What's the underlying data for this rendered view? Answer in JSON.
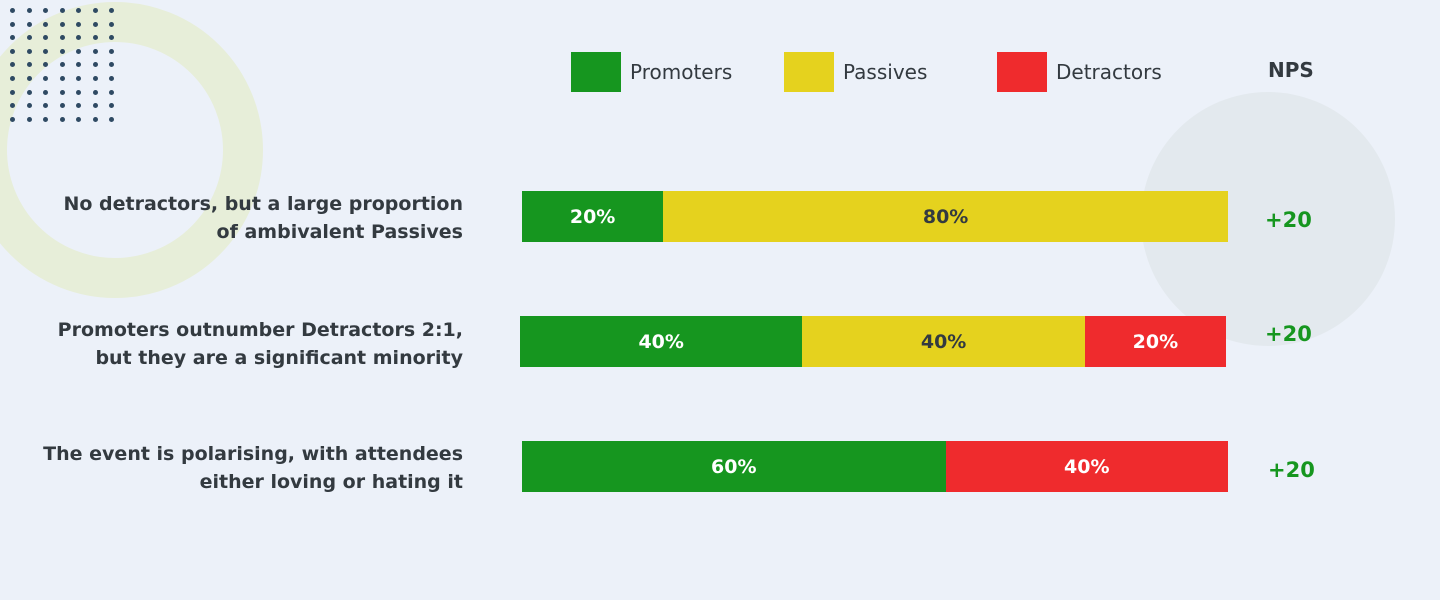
{
  "chart_data": {
    "type": "bar",
    "orientation": "horizontal",
    "stacked": true,
    "categories": [
      "No detractors, but a large proportion of ambivalent Passives",
      "Promoters outnumber Detractors 2:1, but they are a significant minority",
      "The event is polarising, with attendees either loving or hating it"
    ],
    "category_lines": [
      [
        "No detractors, but a large proportion",
        "of ambivalent Passives"
      ],
      [
        "Promoters outnumber Detractors 2:1,",
        "but they are a significant minority"
      ],
      [
        "The event is polarising, with attendees",
        "either loving or hating it"
      ]
    ],
    "series": [
      {
        "name": "Promoters",
        "color": "#16961f",
        "values": [
          20,
          40,
          60
        ],
        "labels": [
          "20%",
          "40%",
          "60%"
        ]
      },
      {
        "name": "Passives",
        "color": "#e5d21e",
        "values": [
          80,
          40,
          0
        ],
        "labels": [
          "80%",
          "40%",
          ""
        ]
      },
      {
        "name": "Detractors",
        "color": "#ef2b2d",
        "values": [
          0,
          20,
          40
        ],
        "labels": [
          "",
          "20%",
          "40%"
        ]
      }
    ],
    "nps_header": "NPS",
    "nps_values": [
      "+20",
      "+20",
      "+20"
    ],
    "xlim": [
      0,
      100
    ],
    "legend_position": "top",
    "grid": false
  }
}
